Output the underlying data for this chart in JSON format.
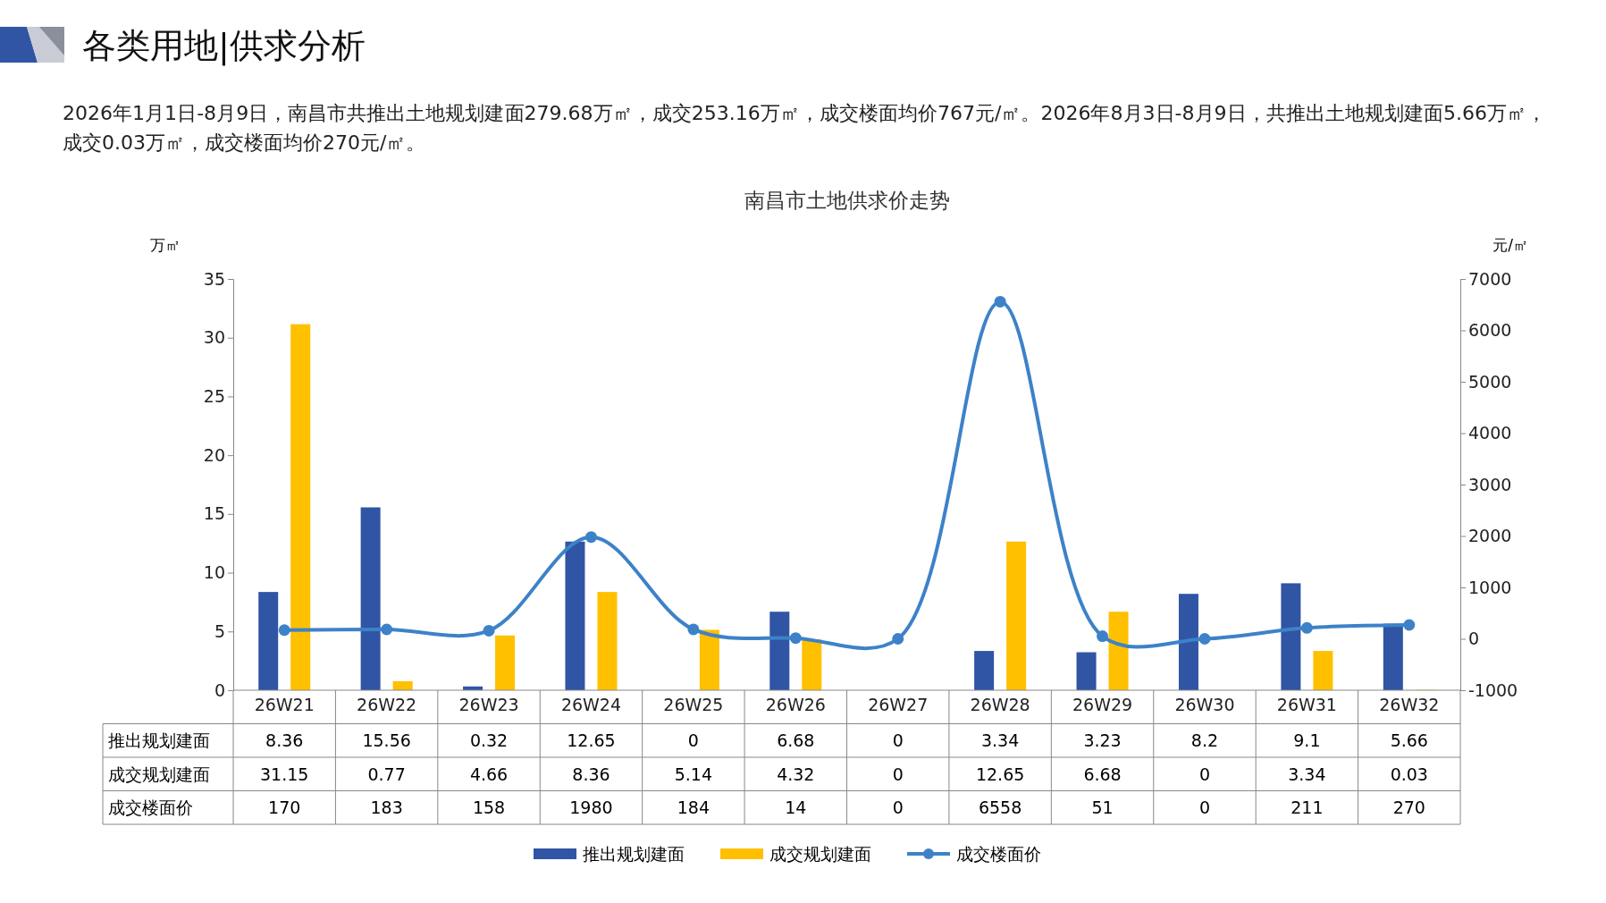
{
  "chart_data": {
    "type": "bar",
    "title": "南昌市土地供求价走势",
    "subtitle": "各类用地|供求分析",
    "annotations": [
      "2026年1月1日-8月9日，南昌市共推出土地规划建面279.68万㎡，成交253.16万㎡，成交楼面均价767元/㎡。2026年8月3日-8月9日，共推出土地规划建面5.66万㎡，成交0.03万㎡，成交楼面均价270元/㎡。"
    ],
    "ylabel": "万㎡",
    "y2label": "元/㎡",
    "categories": [
      "26W21",
      "26W22",
      "26W23",
      "26W24",
      "26W25",
      "26W26",
      "26W27",
      "26W28",
      "26W29",
      "26W30",
      "26W31",
      "26W32"
    ],
    "series": [
      {
        "name": "推出规划建面",
        "color": "#2f55a4",
        "values": [
          8.36,
          15.56,
          0.32,
          12.65,
          0,
          6.68,
          0,
          3.34,
          3.23,
          8.2,
          9.1,
          5.66
        ]
      },
      {
        "name": "成交规划建面",
        "color": "#ffc000",
        "values": [
          31.15,
          0.77,
          4.66,
          8.36,
          5.14,
          4.32,
          0,
          12.65,
          6.68,
          0,
          3.34,
          0.03
        ]
      },
      {
        "name": "成交楼面价",
        "type": "line",
        "axis": "y2",
        "color": "#3d82c8",
        "marker": "circle",
        "values": [
          170,
          183,
          158,
          1980,
          184,
          14,
          0,
          6558,
          51,
          0,
          211,
          270
        ]
      }
    ],
    "ylim": [
      0,
      35
    ],
    "yticks": [
      0,
      5,
      10,
      15,
      20,
      25,
      30,
      35
    ],
    "y2lim": [
      -1000,
      7000
    ],
    "y2ticks": [
      -1000,
      0,
      1000,
      2000,
      3000,
      4000,
      5000,
      6000,
      7000
    ],
    "grid": false,
    "legend": "bottom",
    "data_labels": true
  }
}
